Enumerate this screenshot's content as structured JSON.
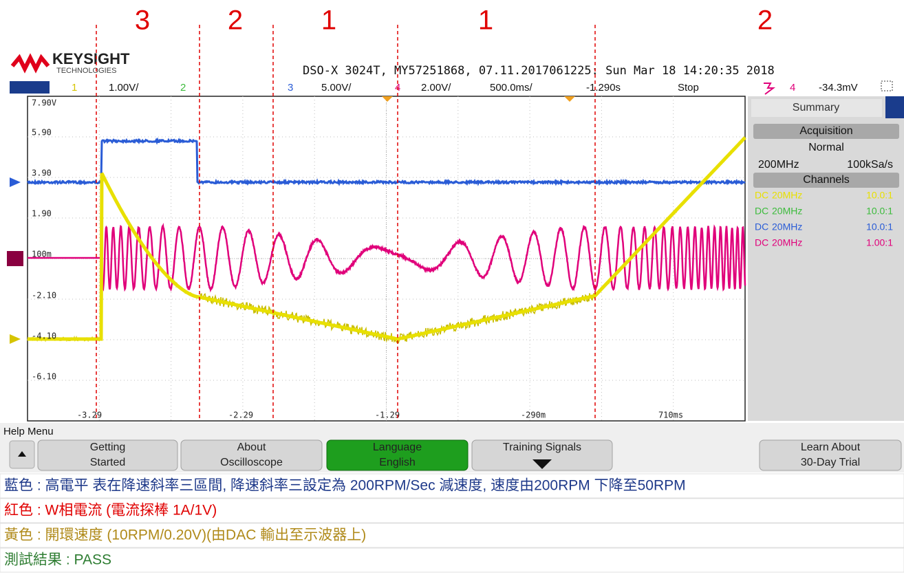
{
  "annotations": {
    "regions": [
      "3",
      "2",
      "1",
      "1",
      "2"
    ]
  },
  "header": {
    "brand": "KEYSIGHT",
    "brand_sub": "TECHNOLOGIES",
    "info": "DSO-X 3024T, MY57251868, 07.11.2017061225: Sun Mar 18 14:20:35 2018"
  },
  "channel_bar": {
    "ch1": "1",
    "ch1_scale": "1.00V/",
    "ch2": "2",
    "ch3": "3",
    "ch3_scale": "5.00V/",
    "ch4": "4",
    "ch4_scale": "2.00V/",
    "timebase": "500.0ms/",
    "delay": "-1.290s",
    "status": "Stop",
    "trigger_source": "4",
    "trigger_level": "-34.3mV"
  },
  "screen": {
    "y_labels": [
      "7.90V",
      "5.90",
      "3.90",
      "1.90",
      "100m",
      "-2.10",
      "-4.10",
      "-6.10"
    ],
    "x_labels": [
      "-3.29",
      "-2.29",
      "-1.29",
      "-290m",
      "710ms"
    ]
  },
  "side_panel": {
    "title": "Summary",
    "acquisition": {
      "heading": "Acquisition",
      "mode": "Normal",
      "bandwidth": "200MHz",
      "sample_rate": "100kSa/s"
    },
    "channels": {
      "heading": "Channels",
      "rows": [
        [
          "DC",
          "20MHz",
          "10.0:1"
        ],
        [
          "DC",
          "20MHz",
          "10.0:1"
        ],
        [
          "DC",
          "20MHz",
          "10.0:1"
        ],
        [
          "DC",
          "20MHz",
          "1.00:1"
        ]
      ]
    }
  },
  "help_menu": {
    "title": "Help Menu",
    "buttons": [
      {
        "line1": "Getting",
        "line2": "Started"
      },
      {
        "line1": "About",
        "line2": "Oscilloscope"
      },
      {
        "line1": "Language",
        "line2": "English"
      },
      {
        "line1": "Training Signals"
      },
      {
        "line1": "Learn About",
        "line2": "30-Day Trial"
      }
    ]
  },
  "notes": [
    "藍色 : 高電平 表在降速斜率三區間, 降速斜率三設定為 200RPM/Sec 減速度, 速度由200RPM 下降至50RPM",
    "紅色 : W相電流 (電流探棒 1A/1V)",
    "黃色 : 開環速度 (10RPM/0.20V)(由DAC 輸出至示波器上)",
    "測試結果 : PASS"
  ]
}
